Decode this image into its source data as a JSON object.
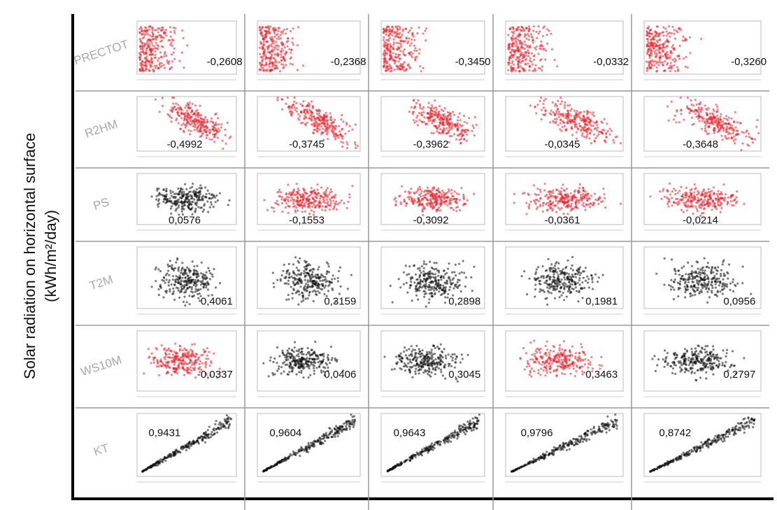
{
  "y_axis_title": "Solar radiation on horizontal surface",
  "y_axis_unit": "(kWh/m²/day)",
  "rows": [
    {
      "label": "PRECTOT",
      "cells": [
        {
          "value": "-0,2608",
          "color": "#e8202a"
        },
        {
          "value": "-0,2368",
          "color": "#e8202a"
        },
        {
          "value": "-0,3450",
          "color": "#e8202a"
        },
        {
          "value": "-0,0332",
          "color": "#e8202a"
        },
        {
          "value": "-0,3260",
          "color": "#e8202a"
        }
      ]
    },
    {
      "label": "R2HM",
      "cells": [
        {
          "value": "-0,4992",
          "color": "#e8202a"
        },
        {
          "value": "-0,3745",
          "color": "#e8202a"
        },
        {
          "value": "-0,3962",
          "color": "#e8202a"
        },
        {
          "value": "-0,0345",
          "color": "#e8202a"
        },
        {
          "value": "-0,3648",
          "color": "#e8202a"
        }
      ]
    },
    {
      "label": "PS",
      "cells": [
        {
          "value": "0,0576",
          "color": "#111111"
        },
        {
          "value": "-0,1553",
          "color": "#e8202a"
        },
        {
          "value": "-0,3092",
          "color": "#e8202a"
        },
        {
          "value": "-0,0361",
          "color": "#e8202a"
        },
        {
          "value": "-0,0214",
          "color": "#e8202a"
        }
      ]
    },
    {
      "label": "T2M",
      "cells": [
        {
          "value": "0,4061",
          "color": "#111111"
        },
        {
          "value": "0,3159",
          "color": "#111111"
        },
        {
          "value": "0,2898",
          "color": "#111111"
        },
        {
          "value": "0,1981",
          "color": "#111111"
        },
        {
          "value": "0,0956",
          "color": "#111111"
        }
      ]
    },
    {
      "label": "WS10M",
      "cells": [
        {
          "value": "-0,0337",
          "color": "#e8202a"
        },
        {
          "value": "0,0406",
          "color": "#111111"
        },
        {
          "value": "0,3045",
          "color": "#111111"
        },
        {
          "value": "0,3463",
          "color": "#e8202a"
        },
        {
          "value": "0,2797",
          "color": "#111111"
        }
      ]
    },
    {
      "label": "KT",
      "cells": [
        {
          "value": "0,9431",
          "color": "#111111"
        },
        {
          "value": "0,9604",
          "color": "#111111"
        },
        {
          "value": "0,9643",
          "color": "#111111"
        },
        {
          "value": "0,9796",
          "color": "#111111"
        },
        {
          "value": "0,8742",
          "color": "#111111"
        }
      ]
    }
  ]
}
